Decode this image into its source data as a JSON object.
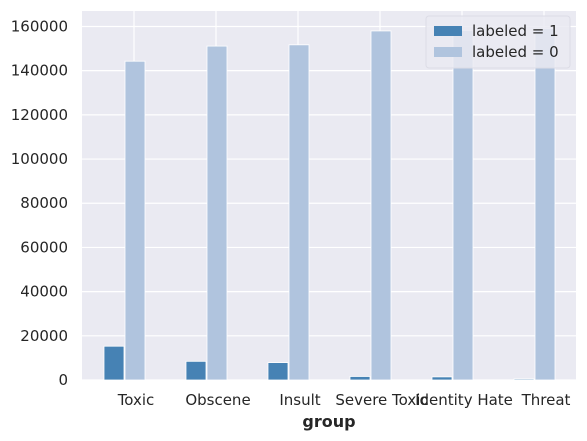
{
  "chart_data": {
    "type": "bar",
    "xlabel": "group",
    "ylabel": "",
    "ylim": [
      0,
      167000
    ],
    "yticks": [
      0,
      20000,
      40000,
      60000,
      80000,
      100000,
      120000,
      140000,
      160000
    ],
    "ytick_labels": [
      "0",
      "20000",
      "40000",
      "60000",
      "80000",
      "100000",
      "120000",
      "140000",
      "160000"
    ],
    "categories": [
      "Toxic",
      "Obscene",
      "Insult",
      "Severe Toxic",
      "Identity Hate",
      "Threat"
    ],
    "series": [
      {
        "name": "labeled = 1",
        "color": "#4682b4",
        "values": [
          15294,
          8449,
          7877,
          1595,
          1405,
          478
        ]
      },
      {
        "name": "labeled = 0",
        "color": "#b0c4de",
        "values": [
          144277,
          151122,
          151694,
          157976,
          158166,
          159093
        ]
      }
    ],
    "grid": true,
    "legend_position": "top-right",
    "background_color": "#eaeaf2",
    "grid_color": "#ffffff"
  }
}
